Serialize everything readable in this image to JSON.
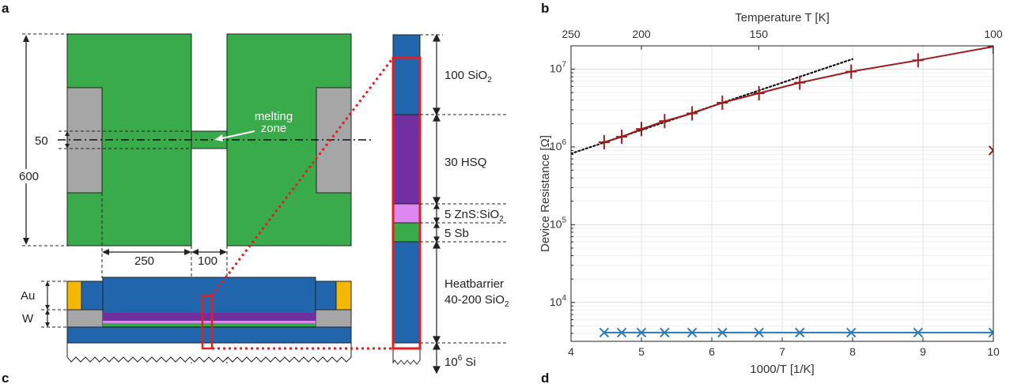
{
  "panels": {
    "a": "a",
    "b": "b",
    "c": "c",
    "d": "d"
  },
  "schematic": {
    "dim_600": "600",
    "dim_50": "50",
    "dim_250": "250",
    "dim_100": "100",
    "melting_zone_line1": "melting",
    "melting_zone_line2": "zone",
    "layer_au": "Au",
    "layer_w": "W",
    "stack_labels": {
      "sio2_top_num": "100 SiO",
      "sio2_top_sub": "2",
      "hsq": "30 HSQ",
      "zns_num": "5  ZnS:SiO",
      "zns_sub": "2",
      "sb": "5  Sb",
      "heatbarrier_line1": "Heatbarrier",
      "heatbarrier_line2": "40-200 SiO",
      "heatbarrier_sub": "2",
      "si_base": "10",
      "si_exp": "6",
      "si_label": " Si"
    },
    "colors": {
      "green": "#3aab4a",
      "blue": "#2166ad",
      "gray": "#a6a6a6",
      "purple": "#7030a0",
      "pink": "#dd88f0",
      "gold": "#f5b800",
      "red": "#e02020"
    }
  },
  "chart_data": {
    "type": "scatter",
    "xlabel": "1000/T [1/K]",
    "ylabel": "Device Resistance [Ω]",
    "top_xlabel": "Temperature T [K]",
    "xlim": [
      4,
      10
    ],
    "ylim_log10": [
      3.5,
      7.3
    ],
    "y_scale": "log",
    "grid": true,
    "x_ticks": [
      4,
      5,
      6,
      7,
      8,
      9,
      10
    ],
    "y_ticks": [
      {
        "base": "10",
        "exp": "4",
        "value": 10000
      },
      {
        "base": "10",
        "exp": "5",
        "value": 100000
      },
      {
        "base": "10",
        "exp": "6",
        "value": 1000000
      },
      {
        "base": "10",
        "exp": "7",
        "value": 10000000
      }
    ],
    "top_ticks": [
      {
        "label": "250",
        "temperature_K": 250
      },
      {
        "label": "200",
        "temperature_K": 200
      },
      {
        "label": "150",
        "temperature_K": 150
      },
      {
        "label": "100",
        "temperature_K": 100
      }
    ],
    "series": [
      {
        "color": "#9e1b1b",
        "marker": "plus",
        "line": true,
        "x": [
          4.47,
          4.72,
          5.0,
          5.33,
          5.72,
          6.15,
          6.67,
          7.25,
          7.98,
          8.93,
          10.0
        ],
        "y": [
          1150000,
          1350000,
          1700000,
          2150000,
          2700000,
          3700000,
          4900000,
          6700000,
          9300000,
          13000000,
          19500000
        ]
      },
      {
        "color": "#2e78b5",
        "marker": "x",
        "line": true,
        "x": [
          4.47,
          4.72,
          5.0,
          5.33,
          5.72,
          6.15,
          6.67,
          7.25,
          7.98,
          8.93,
          10.0
        ],
        "y": [
          4100,
          4100,
          4100,
          4100,
          4100,
          4100,
          4100,
          4100,
          4100,
          4100,
          4100
        ]
      },
      {
        "color": "#9e1b1b",
        "marker": "x",
        "line": false,
        "x": [
          10.0
        ],
        "y": [
          900000
        ]
      }
    ],
    "fit_line": {
      "style": "dotted",
      "color": "#111111",
      "x": [
        4.0,
        8.0
      ],
      "y": [
        820000,
        13500000
      ]
    }
  }
}
